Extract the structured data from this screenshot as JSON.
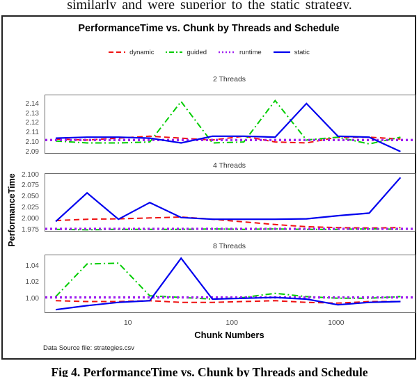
{
  "page": {
    "top_text": "similarly and were superior to the static strategy.",
    "caption": "Fig 4. PerformanceTime vs. Chunk by Threads and Schedule"
  },
  "chart_data": {
    "type": "line",
    "title": "PerformanceTime vs. Chunk by Threads and Schedule",
    "xlabel": "Chunk Numbers",
    "ylabel": "PerformanceTime",
    "source_note": "Data Source file: strategies.csv",
    "x_scale": "log10",
    "grid": "off",
    "legend_position": "top-center",
    "xlim_log10": [
      0.2,
      3.75
    ],
    "x": [
      2,
      4,
      8,
      16,
      32,
      64,
      128,
      256,
      512,
      1024,
      2048,
      4096
    ],
    "x_tick_values": [
      10,
      100,
      1000
    ],
    "x_tick_labels": [
      "10",
      "100",
      "1000"
    ],
    "series_styles": [
      {
        "name": "dynamic",
        "label": "dynamic",
        "color": "#EE1111",
        "dash": "8 5",
        "legend_dash": "7 4",
        "width": 2,
        "full_width": false
      },
      {
        "name": "guided",
        "label": "guided",
        "color": "#00CC00",
        "dash": "9 4 2 4",
        "legend_dash": "2 3 7 3",
        "width": 2,
        "full_width": false
      },
      {
        "name": "runtime",
        "label": "runtime",
        "color": "#A020F0",
        "dash": "3 4",
        "legend_dash": "2 3",
        "width": 3.4,
        "legend_width": 2.6,
        "full_width": true
      },
      {
        "name": "static",
        "label": "static",
        "color": "#0000EE",
        "dash": "",
        "width": 2.2,
        "full_width": false
      }
    ],
    "facets": [
      {
        "label": "2 Threads",
        "ylim": [
          2.0895,
          2.1495
        ],
        "ytick_values": [
          2.14,
          2.13,
          2.12,
          2.11,
          2.1,
          2.09
        ],
        "ytick_labels": [
          "2.14",
          "2.13",
          "2.12",
          "2.11",
          "2.10",
          "2.09"
        ],
        "series": {
          "dynamic": [
            2.104,
            2.103,
            2.105,
            2.107,
            2.105,
            2.103,
            2.107,
            2.101,
            2.1,
            2.106,
            2.106,
            2.104
          ],
          "guided": [
            2.102,
            2.1,
            2.1,
            2.101,
            2.143,
            2.1,
            2.101,
            2.144,
            2.103,
            2.106,
            2.099,
            2.106
          ],
          "runtime": [
            2.103,
            2.103,
            2.103,
            2.103,
            2.103,
            2.103,
            2.103,
            2.103,
            2.103,
            2.103,
            2.103,
            2.103
          ],
          "static": [
            2.105,
            2.106,
            2.106,
            2.105,
            2.1,
            2.107,
            2.107,
            2.106,
            2.141,
            2.107,
            2.106,
            2.091
          ]
        }
      },
      {
        "label": "4 Threads",
        "ylim": [
          1.9734,
          2.1032
        ],
        "ytick_values": [
          2.1,
          2.075,
          2.05,
          2.025,
          2.0,
          1.975
        ],
        "ytick_labels": [
          "2.100",
          "2.075",
          "2.050",
          "2.025",
          "2.000",
          "1.975"
        ],
        "series": {
          "dynamic": [
            1.997,
            2.0,
            2.001,
            2.003,
            2.005,
            2.0,
            1.994,
            1.988,
            1.983,
            1.981,
            1.98,
            1.981
          ],
          "guided": [
            1.977,
            1.976,
            1.977,
            1.977,
            1.977,
            1.978,
            1.977,
            1.978,
            1.977,
            1.977,
            1.978,
            1.977
          ],
          "runtime": [
            1.978,
            1.978,
            1.978,
            1.978,
            1.978,
            1.978,
            1.978,
            1.978,
            1.978,
            1.978,
            1.978,
            1.978
          ],
          "static": [
            1.995,
            2.06,
            2.0,
            2.038,
            2.004,
            2.0,
            2.0,
            2.0,
            2.001,
            2.008,
            2.014,
            2.095
          ]
        }
      },
      {
        "label": "8 Threads",
        "ylim": [
          0.9838,
          1.0536
        ],
        "ytick_values": [
          1.04,
          1.02,
          1.0
        ],
        "ytick_labels": [
          "1.04",
          "1.02",
          "1.00"
        ],
        "series": {
          "dynamic": [
            0.998,
            0.997,
            0.997,
            0.998,
            0.996,
            0.996,
            0.997,
            0.998,
            0.996,
            0.995,
            0.997,
            0.997
          ],
          "guided": [
            1.003,
            1.043,
            1.044,
            1.004,
            1.002,
            1.0,
            1.002,
            1.007,
            1.003,
            1.001,
            1.001,
            1.003
          ],
          "runtime": [
            1.002,
            1.002,
            1.002,
            1.002,
            1.002,
            1.002,
            1.002,
            1.002,
            1.002,
            1.002,
            1.002,
            1.002
          ],
          "static": [
            0.987,
            0.992,
            0.996,
            0.998,
            1.05,
            1.0,
            1.001,
            1.002,
            1.0,
            0.993,
            0.996,
            0.997
          ]
        }
      }
    ]
  }
}
